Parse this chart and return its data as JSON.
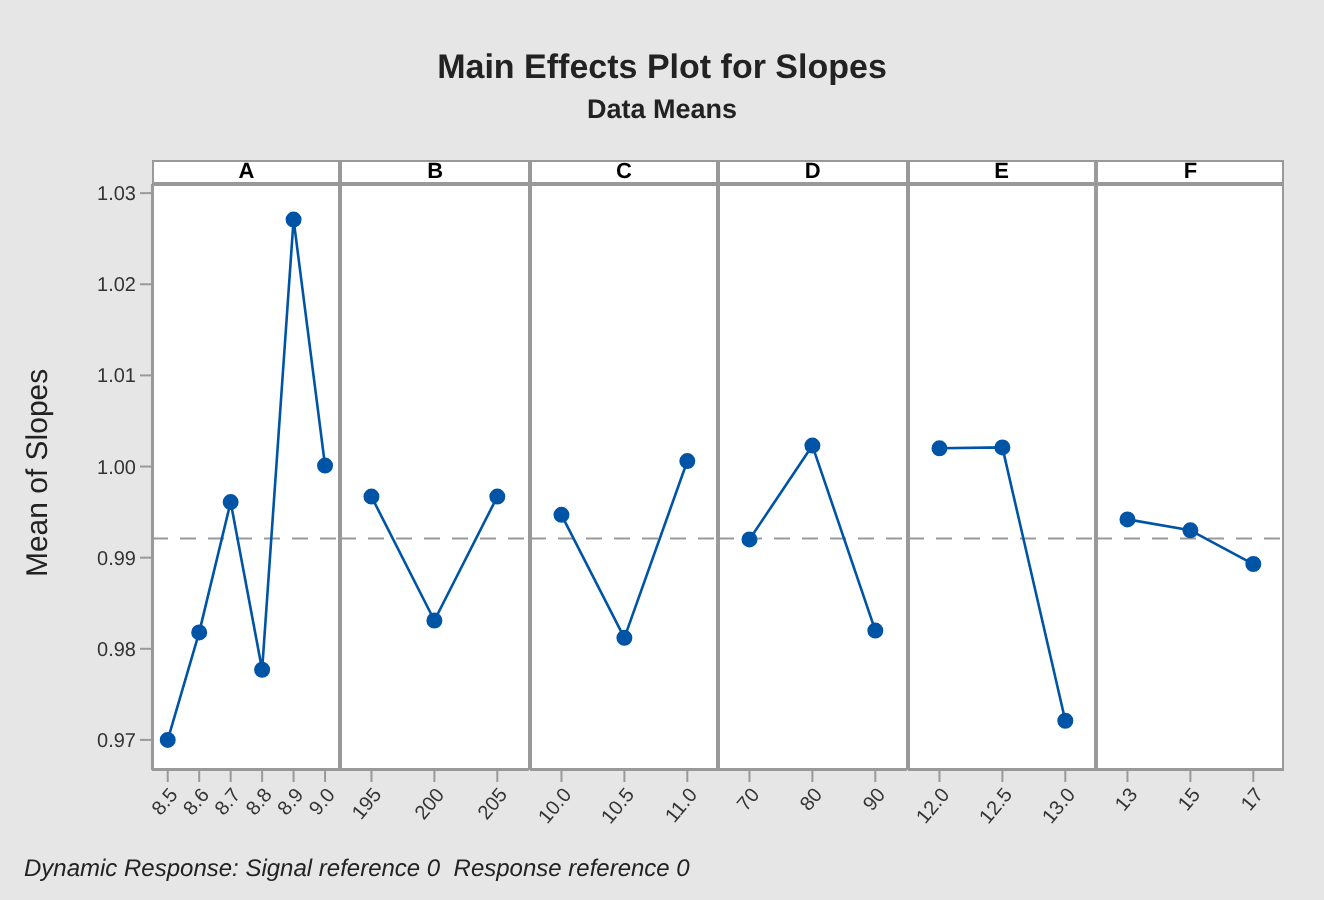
{
  "chart_data": [
    {
      "type": "other",
      "title": "Main Effects Plot for Slopes",
      "subtitle": "Data Means",
      "annotations": [
        "Dynamic Response: Signal reference 0  Response reference 0"
      ]
    },
    {
      "type": "line",
      "title": "A",
      "ylabel": "Mean of Slopes",
      "categories": [
        "8.5",
        "8.6",
        "8.7",
        "8.8",
        "8.9",
        "9.0"
      ],
      "series": [
        {
          "color": "#0054a6",
          "values": [
            0.97,
            0.9818,
            0.9961,
            0.9777,
            1.0271,
            1.0001
          ]
        }
      ],
      "ylim": [
        0.9667,
        1.031
      ],
      "yticks": [
        0.97,
        0.98,
        0.99,
        {
          "value": 1.0,
          "label": "1.00"
        },
        1.01,
        1.02,
        1.03
      ],
      "ref_lines": [
        {
          "axis": "y",
          "value": 0.9921,
          "color": "#999999",
          "line_style": "dashed"
        }
      ],
      "marker": "circle",
      "grid": false,
      "legend": false
    },
    {
      "type": "line",
      "title": "B",
      "categories": [
        "195",
        "200",
        "205"
      ],
      "series": [
        {
          "color": "#0054a6",
          "values": [
            0.9967,
            0.9831,
            0.9967
          ]
        }
      ],
      "ylim": [
        0.9667,
        1.031
      ],
      "tick_labels": "x",
      "ref_lines": [
        {
          "axis": "y",
          "value": 0.9921,
          "color": "#999999",
          "line_style": "dashed"
        }
      ],
      "marker": "circle",
      "grid": false,
      "legend": false
    },
    {
      "type": "line",
      "title": "C",
      "categories": [
        "10.0",
        "10.5",
        "11.0"
      ],
      "series": [
        {
          "color": "#0054a6",
          "values": [
            0.9947,
            0.9812,
            1.0006
          ]
        }
      ],
      "ylim": [
        0.9667,
        1.031
      ],
      "tick_labels": "x",
      "ref_lines": [
        {
          "axis": "y",
          "value": 0.9921,
          "color": "#999999",
          "line_style": "dashed"
        }
      ],
      "marker": "circle",
      "grid": false,
      "legend": false
    },
    {
      "type": "line",
      "title": "D",
      "categories": [
        "70",
        "80",
        "90"
      ],
      "series": [
        {
          "color": "#0054a6",
          "values": [
            0.992,
            1.0023,
            0.982
          ]
        }
      ],
      "ylim": [
        0.9667,
        1.031
      ],
      "tick_labels": "x",
      "ref_lines": [
        {
          "axis": "y",
          "value": 0.9921,
          "color": "#999999",
          "line_style": "dashed"
        }
      ],
      "marker": "circle",
      "grid": false,
      "legend": false
    },
    {
      "type": "line",
      "title": "E",
      "categories": [
        "12.0",
        "12.5",
        "13.0"
      ],
      "series": [
        {
          "color": "#0054a6",
          "values": [
            1.002,
            1.0021,
            0.9721
          ]
        }
      ],
      "ylim": [
        0.9667,
        1.031
      ],
      "tick_labels": "x",
      "ref_lines": [
        {
          "axis": "y",
          "value": 0.9921,
          "color": "#999999",
          "line_style": "dashed"
        }
      ],
      "marker": "circle",
      "grid": false,
      "legend": false
    },
    {
      "type": "line",
      "title": "F",
      "categories": [
        "13",
        "15",
        "17"
      ],
      "series": [
        {
          "color": "#0054a6",
          "values": [
            0.9942,
            0.993,
            0.9893
          ]
        }
      ],
      "ylim": [
        0.9667,
        1.031
      ],
      "tick_labels": "x",
      "ref_lines": [
        {
          "axis": "y",
          "value": 0.9921,
          "color": "#999999",
          "line_style": "dashed"
        }
      ],
      "marker": "circle",
      "grid": false,
      "legend": false
    }
  ]
}
